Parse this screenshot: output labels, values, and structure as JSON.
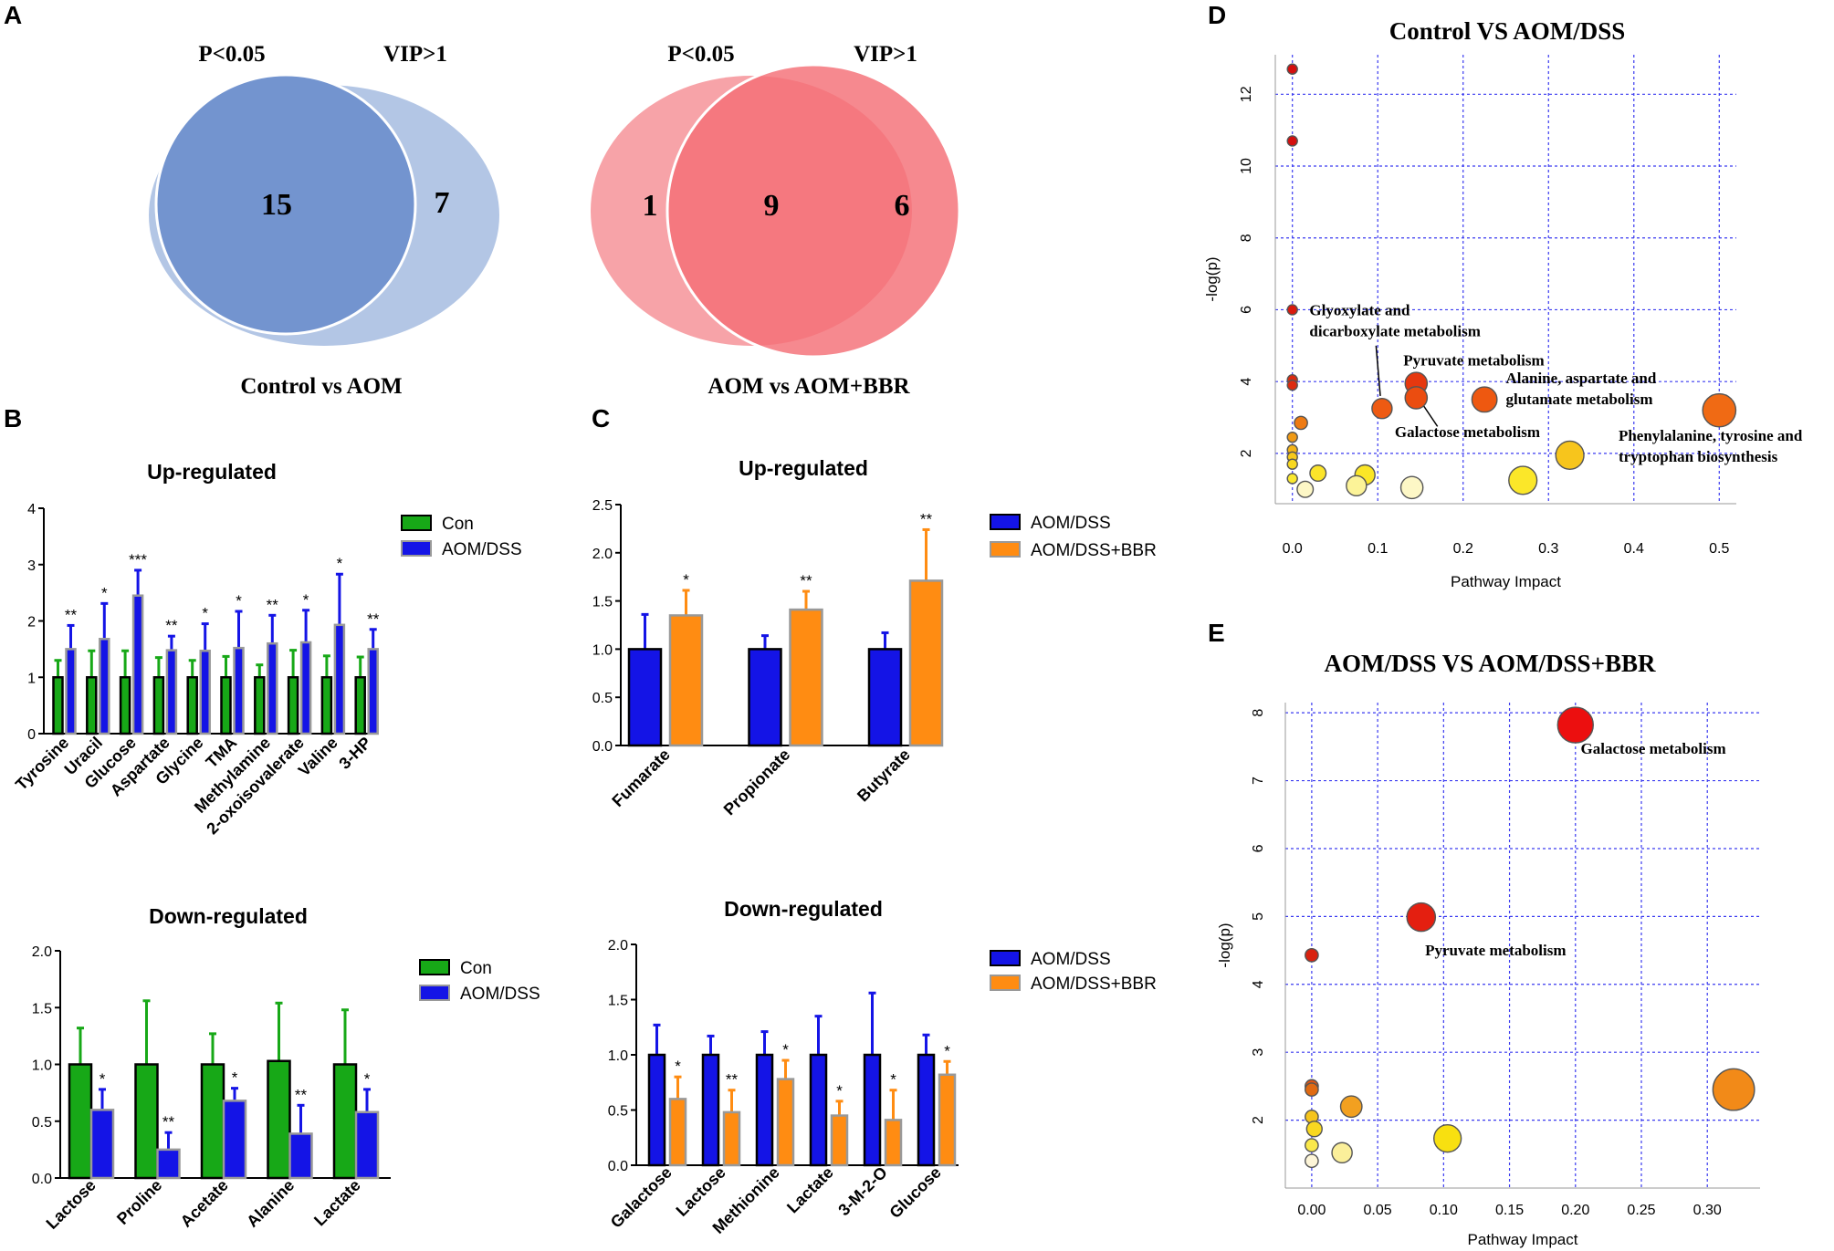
{
  "figure": {
    "panel_labels": [
      "A",
      "B",
      "C",
      "D",
      "E"
    ]
  },
  "chart_data": [
    {
      "type": "venn",
      "id": "venn1",
      "sets": [
        "P<0.05",
        "VIP>1"
      ],
      "regions": {
        "only_a": "",
        "both": "15",
        "only_b": "7"
      },
      "title": "Control vs AOM",
      "colors": {
        "a": "#7394cf",
        "b": "#b3c6e5"
      }
    },
    {
      "type": "venn",
      "id": "venn2",
      "sets": [
        "P<0.05",
        "VIP>1"
      ],
      "regions": {
        "only_a": "1",
        "both": "9",
        "only_b": "6"
      },
      "title": "AOM vs AOM+BBR",
      "colors": {
        "a": "#f7a3a8",
        "b": "#f46f76"
      }
    },
    {
      "type": "bar",
      "id": "b_up",
      "title": "Up-regulated",
      "categories": [
        "Tyrosine",
        "Uracil",
        "Glucose",
        "Aspartate",
        "Glycine",
        "TMA",
        "Methylamine",
        "2-oxoisovalerate",
        "Valine",
        "3-HP"
      ],
      "series": [
        {
          "name": "Con",
          "color": "#17a817",
          "values": [
            1,
            1,
            1,
            1,
            1,
            1,
            1,
            1,
            1,
            1
          ],
          "errors": [
            0.3,
            0.47,
            0.47,
            0.35,
            0.3,
            0.37,
            0.22,
            0.48,
            0.38,
            0.36
          ]
        },
        {
          "name": "AOM/DSS",
          "color": "#1414e6",
          "values": [
            1.5,
            1.68,
            2.45,
            1.48,
            1.47,
            1.52,
            1.6,
            1.62,
            1.93,
            1.5
          ],
          "errors": [
            0.42,
            0.63,
            0.45,
            0.25,
            0.48,
            0.65,
            0.5,
            0.57,
            0.9,
            0.35
          ]
        }
      ],
      "significance": [
        "**",
        "*",
        "***",
        "**",
        "*",
        "*",
        "**",
        "*",
        "*",
        "**"
      ],
      "ylim": [
        0,
        4
      ],
      "yticks": [
        "0",
        "1",
        "2",
        "3",
        "4"
      ]
    },
    {
      "type": "bar",
      "id": "b_down",
      "title": "Down-regulated",
      "categories": [
        "Lactose",
        "Proline",
        "Acetate",
        "Alanine",
        "Lactate"
      ],
      "series": [
        {
          "name": "Con",
          "color": "#17a817",
          "values": [
            1.0,
            1.0,
            1.0,
            1.03,
            1.0
          ],
          "errors": [
            0.32,
            0.56,
            0.27,
            0.51,
            0.48
          ]
        },
        {
          "name": "AOM/DSS",
          "color": "#1414e6",
          "values": [
            0.6,
            0.25,
            0.68,
            0.39,
            0.58
          ],
          "errors": [
            0.18,
            0.15,
            0.11,
            0.25,
            0.2
          ]
        }
      ],
      "significance": [
        "*",
        "**",
        "*",
        "**",
        "*"
      ],
      "ylim": [
        0,
        2.0
      ],
      "yticks": [
        "0.0",
        "0.5",
        "1.0",
        "1.5",
        "2.0"
      ]
    },
    {
      "type": "bar",
      "id": "c_up",
      "title": "Up-regulated",
      "categories": [
        "Fumarate",
        "Propionate",
        "Butyrate"
      ],
      "series": [
        {
          "name": "AOM/DSS",
          "color": "#1414e6",
          "values": [
            1.0,
            1.0,
            1.0
          ],
          "errors": [
            0.36,
            0.14,
            0.17
          ]
        },
        {
          "name": "AOM/DSS+BBR",
          "color": "#ff8c12",
          "values": [
            1.35,
            1.41,
            1.71
          ],
          "errors": [
            0.26,
            0.19,
            0.53
          ]
        }
      ],
      "significance": [
        "*",
        "**",
        "**"
      ],
      "ylim": [
        0,
        2.5
      ],
      "yticks": [
        "0.0",
        "0.5",
        "1.0",
        "1.5",
        "2.0",
        "2.5"
      ]
    },
    {
      "type": "bar",
      "id": "c_down",
      "title": "Down-regulated",
      "categories": [
        "Galactose",
        "Lactose",
        "Methionine",
        "Lactate",
        "3-M-2-O",
        "Glucose"
      ],
      "series": [
        {
          "name": "AOM/DSS",
          "color": "#1414e6",
          "values": [
            1.0,
            1.0,
            1.0,
            1.0,
            1.0,
            1.0
          ],
          "errors": [
            0.27,
            0.17,
            0.21,
            0.35,
            0.56,
            0.18
          ]
        },
        {
          "name": "AOM/DSS+BBR",
          "color": "#ff8c12",
          "values": [
            0.6,
            0.48,
            0.78,
            0.45,
            0.41,
            0.82
          ],
          "errors": [
            0.2,
            0.2,
            0.17,
            0.13,
            0.27,
            0.12
          ]
        }
      ],
      "significance": [
        "*",
        "**",
        "*",
        "*",
        "*",
        "*"
      ],
      "ylim": [
        0,
        2.0
      ],
      "yticks": [
        "0.0",
        "0.5",
        "1.0",
        "1.5",
        "2.0"
      ]
    },
    {
      "type": "scatter",
      "id": "d_bubble",
      "title": "Control VS AOM/DSS",
      "xlabel": "Pathway Impact",
      "ylabel": "-log(p)",
      "xlim": [
        -0.02,
        0.52
      ],
      "ylim": [
        0.6,
        13.1
      ],
      "xticks": [
        0,
        0.1,
        0.2,
        0.3,
        0.4,
        0.5
      ],
      "xtick_labels": [
        "0.0",
        "0.1",
        "0.2",
        "0.3",
        "0.4",
        "0.5"
      ],
      "yticks": [
        2,
        4,
        6,
        8,
        10,
        12
      ],
      "ytick_labels": [
        "2",
        "4",
        "6",
        "8",
        "10",
        "12"
      ],
      "points": [
        {
          "x": 0.0,
          "y": 12.7,
          "size": 1,
          "color": "#d40f0f"
        },
        {
          "x": 0.0,
          "y": 10.7,
          "size": 1,
          "color": "#d40f0f"
        },
        {
          "x": 0.0,
          "y": 6.0,
          "size": 1,
          "color": "#d91a0f"
        },
        {
          "x": 0.0,
          "y": 4.05,
          "size": 1,
          "color": "#dc2a10"
        },
        {
          "x": 0.0,
          "y": 3.9,
          "size": 1,
          "color": "#dc2a10"
        },
        {
          "x": 0.01,
          "y": 2.85,
          "size": 1.3,
          "color": "#ee7a12"
        },
        {
          "x": 0.0,
          "y": 2.45,
          "size": 1,
          "color": "#f09a15"
        },
        {
          "x": 0.0,
          "y": 2.1,
          "size": 1,
          "color": "#f5b418"
        },
        {
          "x": 0.0,
          "y": 1.9,
          "size": 1,
          "color": "#f7c81c"
        },
        {
          "x": 0.0,
          "y": 1.7,
          "size": 1,
          "color": "#f8d81f"
        },
        {
          "x": 0.0,
          "y": 1.3,
          "size": 1,
          "color": "#fae830"
        },
        {
          "x": 0.105,
          "y": 3.25,
          "size": 2,
          "color": "#ee5a12"
        },
        {
          "x": 0.145,
          "y": 3.95,
          "size": 2.2,
          "color": "#e6380f"
        },
        {
          "x": 0.145,
          "y": 3.55,
          "size": 2.2,
          "color": "#eb4d10"
        },
        {
          "x": 0.225,
          "y": 3.5,
          "size": 2.5,
          "color": "#ee5810"
        },
        {
          "x": 0.5,
          "y": 3.2,
          "size": 3.3,
          "color": "#f06a14"
        },
        {
          "x": 0.03,
          "y": 1.45,
          "size": 1.6,
          "color": "#fbe42a"
        },
        {
          "x": 0.015,
          "y": 1.0,
          "size": 1.6,
          "color": "#fdf7c6"
        },
        {
          "x": 0.085,
          "y": 1.4,
          "size": 2,
          "color": "#fbe626"
        },
        {
          "x": 0.075,
          "y": 1.1,
          "size": 2,
          "color": "#fcf398"
        },
        {
          "x": 0.14,
          "y": 1.05,
          "size": 2.2,
          "color": "#fdf7c6"
        },
        {
          "x": 0.27,
          "y": 1.25,
          "size": 2.8,
          "color": "#fbe729"
        },
        {
          "x": 0.325,
          "y": 1.95,
          "size": 2.8,
          "color": "#f7c51c"
        }
      ],
      "annotations": [
        {
          "lines": [
            "Glyoxylate and",
            "dicarboxylate metabolism"
          ],
          "x": 0.02,
          "y": 5.85
        },
        {
          "lines": [
            "Pyruvate metabolism"
          ],
          "x": 0.13,
          "y": 4.45
        },
        {
          "lines": [
            "Alanine, aspartate and",
            "glutamate metabolism"
          ],
          "x": 0.25,
          "y": 3.95
        },
        {
          "lines": [
            "Galactose metabolism"
          ],
          "x": 0.12,
          "y": 2.45
        },
        {
          "lines": [
            "Phenylalanine, tyrosine and",
            "tryptophan biosynthesis"
          ],
          "x": 0.382,
          "y": 2.35
        }
      ]
    },
    {
      "type": "scatter",
      "id": "e_bubble",
      "title": "AOM/DSS VS AOM/DSS+BBR",
      "xlabel": "Pathway Impact",
      "ylabel": "-log(p)",
      "xlim": [
        -0.02,
        0.34
      ],
      "ylim": [
        1.0,
        8.15
      ],
      "xticks": [
        0,
        0.05,
        0.1,
        0.15,
        0.2,
        0.25,
        0.3
      ],
      "xtick_labels": [
        "0.00",
        "0.05",
        "0.10",
        "0.15",
        "0.20",
        "0.25",
        "0.30"
      ],
      "yticks": [
        2,
        3,
        4,
        5,
        6,
        7,
        8
      ],
      "ytick_labels": [
        "2",
        "3",
        "4",
        "5",
        "6",
        "7",
        "8"
      ],
      "points": [
        {
          "x": 0.2,
          "y": 7.82,
          "size": 3,
          "color": "#ec0f0f"
        },
        {
          "x": 0.083,
          "y": 4.99,
          "size": 2.4,
          "color": "#e41f10"
        },
        {
          "x": 0.0,
          "y": 4.43,
          "size": 1.1,
          "color": "#d9220f"
        },
        {
          "x": 0.0,
          "y": 2.5,
          "size": 1.1,
          "color": "#e05512"
        },
        {
          "x": 0.0,
          "y": 2.45,
          "size": 1.1,
          "color": "#e06a12"
        },
        {
          "x": 0.03,
          "y": 2.2,
          "size": 1.8,
          "color": "#f2a020"
        },
        {
          "x": 0.0,
          "y": 2.05,
          "size": 1.1,
          "color": "#f5c41c"
        },
        {
          "x": 0.002,
          "y": 1.87,
          "size": 1.3,
          "color": "#f9d820"
        },
        {
          "x": 0.0,
          "y": 1.63,
          "size": 1.1,
          "color": "#fae84a"
        },
        {
          "x": 0.0,
          "y": 1.4,
          "size": 1.1,
          "color": "#fdf5d8"
        },
        {
          "x": 0.023,
          "y": 1.52,
          "size": 1.7,
          "color": "#fbef9a"
        },
        {
          "x": 0.103,
          "y": 1.73,
          "size": 2.3,
          "color": "#f8e010"
        },
        {
          "x": 0.32,
          "y": 2.45,
          "size": 3.5,
          "color": "#f28a18"
        }
      ],
      "annotations": [
        {
          "lines": [
            "Galactose metabolism"
          ],
          "x": 0.204,
          "y": 7.4
        },
        {
          "lines": [
            "Pyruvate metabolism"
          ],
          "x": 0.086,
          "y": 4.43
        }
      ]
    }
  ]
}
